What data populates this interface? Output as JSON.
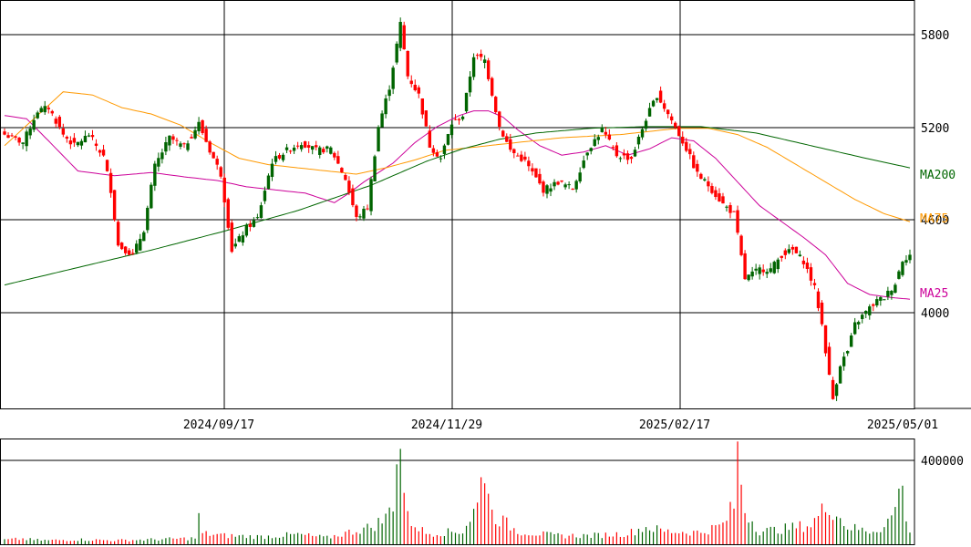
{
  "chart_data": [
    {
      "type": "candlestick",
      "title": "",
      "x_ticks": [
        "2024/09/17",
        "2024/11/29",
        "2025/02/17",
        "2025/05/01"
      ],
      "y_ticks": [
        "5800",
        "5200",
        "4600",
        "4000"
      ],
      "ylim": [
        3420,
        6000
      ],
      "grid": true,
      "up_color": "#006400",
      "down_color": "#ff0000",
      "ohlc_anchors": [
        {
          "i": 0,
          "close": 5150
        },
        {
          "i": 5,
          "close": 5100
        },
        {
          "i": 9,
          "close": 5300
        },
        {
          "i": 12,
          "close": 5320
        },
        {
          "i": 16,
          "close": 5150
        },
        {
          "i": 19,
          "close": 5080
        },
        {
          "i": 23,
          "close": 5150
        },
        {
          "i": 27,
          "close": 5010
        },
        {
          "i": 29,
          "close": 4800
        },
        {
          "i": 31,
          "close": 4450
        },
        {
          "i": 35,
          "close": 4390
        },
        {
          "i": 38,
          "close": 4550
        },
        {
          "i": 41,
          "close": 4950
        },
        {
          "i": 45,
          "close": 5130
        },
        {
          "i": 49,
          "close": 5070
        },
        {
          "i": 53,
          "close": 5220
        },
        {
          "i": 56,
          "close": 5050
        },
        {
          "i": 59,
          "close": 4900
        },
        {
          "i": 62,
          "close": 4420
        },
        {
          "i": 66,
          "close": 4560
        },
        {
          "i": 69,
          "close": 4620
        },
        {
          "i": 73,
          "close": 4980
        },
        {
          "i": 77,
          "close": 5050
        },
        {
          "i": 81,
          "close": 5100
        },
        {
          "i": 85,
          "close": 5050
        },
        {
          "i": 89,
          "close": 5060
        },
        {
          "i": 93,
          "close": 4870
        },
        {
          "i": 96,
          "close": 4620
        },
        {
          "i": 99,
          "close": 4690
        },
        {
          "i": 102,
          "close": 5200
        },
        {
          "i": 105,
          "close": 5450
        },
        {
          "i": 108,
          "close": 5850
        },
        {
          "i": 110,
          "close": 5520
        },
        {
          "i": 113,
          "close": 5400
        },
        {
          "i": 116,
          "close": 5080
        },
        {
          "i": 119,
          "close": 5000
        },
        {
          "i": 122,
          "close": 5220
        },
        {
          "i": 125,
          "close": 5270
        },
        {
          "i": 128,
          "close": 5650
        },
        {
          "i": 131,
          "close": 5620
        },
        {
          "i": 135,
          "close": 5200
        },
        {
          "i": 138,
          "close": 5050
        },
        {
          "i": 142,
          "close": 4980
        },
        {
          "i": 147,
          "close": 4800
        },
        {
          "i": 151,
          "close": 4850
        },
        {
          "i": 155,
          "close": 4810
        },
        {
          "i": 159,
          "close": 5050
        },
        {
          "i": 163,
          "close": 5180
        },
        {
          "i": 167,
          "close": 5020
        },
        {
          "i": 171,
          "close": 5000
        },
        {
          "i": 175,
          "close": 5250
        },
        {
          "i": 178,
          "close": 5400
        },
        {
          "i": 182,
          "close": 5240
        },
        {
          "i": 186,
          "close": 5060
        },
        {
          "i": 189,
          "close": 4900
        },
        {
          "i": 192,
          "close": 4830
        },
        {
          "i": 196,
          "close": 4710
        },
        {
          "i": 199,
          "close": 4650
        },
        {
          "i": 202,
          "close": 4240
        },
        {
          "i": 206,
          "close": 4300
        },
        {
          "i": 209,
          "close": 4300
        },
        {
          "i": 212,
          "close": 4390
        },
        {
          "i": 215,
          "close": 4420
        },
        {
          "i": 218,
          "close": 4350
        },
        {
          "i": 221,
          "close": 4180
        },
        {
          "i": 223,
          "close": 3950
        },
        {
          "i": 225,
          "close": 3620
        },
        {
          "i": 226,
          "close": 3480
        },
        {
          "i": 228,
          "close": 3700
        },
        {
          "i": 230,
          "close": 3780
        },
        {
          "i": 232,
          "close": 3950
        },
        {
          "i": 235,
          "close": 4030
        },
        {
          "i": 238,
          "close": 4100
        },
        {
          "i": 240,
          "close": 4120
        },
        {
          "i": 243,
          "close": 4210
        },
        {
          "i": 245,
          "close": 4360
        },
        {
          "i": 247,
          "close": 4390
        }
      ],
      "moving_averages": [
        {
          "name": "MA25",
          "color": "#cc0099",
          "anchors": [
            {
              "i": 0,
              "v": 5270
            },
            {
              "i": 6,
              "v": 5250
            },
            {
              "i": 12,
              "v": 5110
            },
            {
              "i": 20,
              "v": 4920
            },
            {
              "i": 30,
              "v": 4890
            },
            {
              "i": 40,
              "v": 4910
            },
            {
              "i": 50,
              "v": 4880
            },
            {
              "i": 58,
              "v": 4860
            },
            {
              "i": 66,
              "v": 4820
            },
            {
              "i": 74,
              "v": 4800
            },
            {
              "i": 82,
              "v": 4780
            },
            {
              "i": 90,
              "v": 4720
            },
            {
              "i": 94,
              "v": 4780
            },
            {
              "i": 98,
              "v": 4850
            },
            {
              "i": 102,
              "v": 4910
            },
            {
              "i": 106,
              "v": 4970
            },
            {
              "i": 112,
              "v": 5100
            },
            {
              "i": 118,
              "v": 5200
            },
            {
              "i": 124,
              "v": 5270
            },
            {
              "i": 128,
              "v": 5300
            },
            {
              "i": 132,
              "v": 5300
            },
            {
              "i": 136,
              "v": 5260
            },
            {
              "i": 140,
              "v": 5180
            },
            {
              "i": 146,
              "v": 5080
            },
            {
              "i": 152,
              "v": 5020
            },
            {
              "i": 158,
              "v": 5040
            },
            {
              "i": 164,
              "v": 5080
            },
            {
              "i": 170,
              "v": 5020
            },
            {
              "i": 176,
              "v": 5060
            },
            {
              "i": 182,
              "v": 5130
            },
            {
              "i": 188,
              "v": 5110
            },
            {
              "i": 194,
              "v": 5000
            },
            {
              "i": 200,
              "v": 4850
            },
            {
              "i": 206,
              "v": 4700
            },
            {
              "i": 212,
              "v": 4600
            },
            {
              "i": 218,
              "v": 4500
            },
            {
              "i": 224,
              "v": 4390
            },
            {
              "i": 230,
              "v": 4210
            },
            {
              "i": 236,
              "v": 4140
            },
            {
              "i": 242,
              "v": 4120
            },
            {
              "i": 247,
              "v": 4110
            }
          ]
        },
        {
          "name": "MA75",
          "color": "#ff9900",
          "anchors": [
            {
              "i": 0,
              "v": 5080
            },
            {
              "i": 8,
              "v": 5250
            },
            {
              "i": 16,
              "v": 5420
            },
            {
              "i": 24,
              "v": 5400
            },
            {
              "i": 32,
              "v": 5320
            },
            {
              "i": 40,
              "v": 5280
            },
            {
              "i": 48,
              "v": 5210
            },
            {
              "i": 56,
              "v": 5100
            },
            {
              "i": 64,
              "v": 5000
            },
            {
              "i": 72,
              "v": 4960
            },
            {
              "i": 80,
              "v": 4940
            },
            {
              "i": 88,
              "v": 4920
            },
            {
              "i": 96,
              "v": 4900
            },
            {
              "i": 104,
              "v": 4940
            },
            {
              "i": 112,
              "v": 4990
            },
            {
              "i": 120,
              "v": 5050
            },
            {
              "i": 128,
              "v": 5070
            },
            {
              "i": 136,
              "v": 5090
            },
            {
              "i": 144,
              "v": 5110
            },
            {
              "i": 152,
              "v": 5130
            },
            {
              "i": 160,
              "v": 5140
            },
            {
              "i": 168,
              "v": 5150
            },
            {
              "i": 176,
              "v": 5170
            },
            {
              "i": 184,
              "v": 5190
            },
            {
              "i": 192,
              "v": 5190
            },
            {
              "i": 200,
              "v": 5150
            },
            {
              "i": 208,
              "v": 5070
            },
            {
              "i": 216,
              "v": 4960
            },
            {
              "i": 224,
              "v": 4850
            },
            {
              "i": 232,
              "v": 4740
            },
            {
              "i": 240,
              "v": 4650
            },
            {
              "i": 247,
              "v": 4600
            }
          ]
        },
        {
          "name": "MA200",
          "color": "#006600",
          "anchors": [
            {
              "i": 0,
              "v": 4200
            },
            {
              "i": 20,
              "v": 4310
            },
            {
              "i": 40,
              "v": 4420
            },
            {
              "i": 60,
              "v": 4540
            },
            {
              "i": 80,
              "v": 4670
            },
            {
              "i": 100,
              "v": 4830
            },
            {
              "i": 115,
              "v": 4980
            },
            {
              "i": 125,
              "v": 5060
            },
            {
              "i": 135,
              "v": 5120
            },
            {
              "i": 145,
              "v": 5160
            },
            {
              "i": 160,
              "v": 5190
            },
            {
              "i": 175,
              "v": 5200
            },
            {
              "i": 190,
              "v": 5200
            },
            {
              "i": 205,
              "v": 5160
            },
            {
              "i": 220,
              "v": 5080
            },
            {
              "i": 235,
              "v": 5000
            },
            {
              "i": 247,
              "v": 4940
            }
          ]
        }
      ],
      "ma_labels": [
        "MA200",
        "MA75",
        "MA25"
      ]
    },
    {
      "type": "bar",
      "title": "",
      "y_ticks": [
        "400000"
      ],
      "ylim": [
        0,
        440000
      ],
      "volume_anchors": [
        {
          "i": 0,
          "v": 20000
        },
        {
          "i": 5,
          "v": 25000
        },
        {
          "i": 8,
          "v": 20000
        },
        {
          "i": 12,
          "v": 18000
        },
        {
          "i": 20,
          "v": 22000
        },
        {
          "i": 30,
          "v": 18000
        },
        {
          "i": 40,
          "v": 22000
        },
        {
          "i": 52,
          "v": 28000
        },
        {
          "i": 53,
          "v": 120000
        },
        {
          "i": 54,
          "v": 50000
        },
        {
          "i": 60,
          "v": 40000
        },
        {
          "i": 70,
          "v": 35000
        },
        {
          "i": 80,
          "v": 45000
        },
        {
          "i": 88,
          "v": 30000
        },
        {
          "i": 95,
          "v": 60000
        },
        {
          "i": 100,
          "v": 80000
        },
        {
          "i": 104,
          "v": 120000
        },
        {
          "i": 106,
          "v": 200000
        },
        {
          "i": 107,
          "v": 440000
        },
        {
          "i": 108,
          "v": 420000
        },
        {
          "i": 110,
          "v": 120000
        },
        {
          "i": 115,
          "v": 50000
        },
        {
          "i": 125,
          "v": 60000
        },
        {
          "i": 129,
          "v": 180000
        },
        {
          "i": 131,
          "v": 380000
        },
        {
          "i": 133,
          "v": 140000
        },
        {
          "i": 140,
          "v": 60000
        },
        {
          "i": 150,
          "v": 40000
        },
        {
          "i": 160,
          "v": 40000
        },
        {
          "i": 170,
          "v": 50000
        },
        {
          "i": 175,
          "v": 80000
        },
        {
          "i": 180,
          "v": 60000
        },
        {
          "i": 190,
          "v": 55000
        },
        {
          "i": 196,
          "v": 90000
        },
        {
          "i": 199,
          "v": 180000
        },
        {
          "i": 200,
          "v": 420000
        },
        {
          "i": 202,
          "v": 160000
        },
        {
          "i": 206,
          "v": 60000
        },
        {
          "i": 212,
          "v": 70000
        },
        {
          "i": 220,
          "v": 90000
        },
        {
          "i": 225,
          "v": 190000
        },
        {
          "i": 226,
          "v": 160000
        },
        {
          "i": 230,
          "v": 80000
        },
        {
          "i": 236,
          "v": 60000
        },
        {
          "i": 240,
          "v": 80000
        },
        {
          "i": 243,
          "v": 160000
        },
        {
          "i": 244,
          "v": 310000
        },
        {
          "i": 246,
          "v": 140000
        },
        {
          "i": 247,
          "v": 60000
        }
      ]
    }
  ]
}
